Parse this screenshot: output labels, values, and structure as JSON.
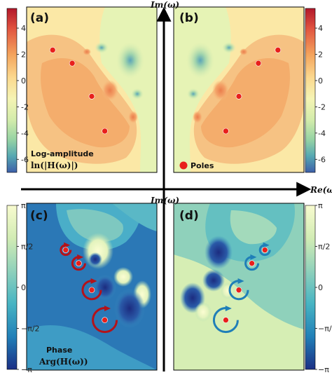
{
  "chart_data": [
    {
      "type": "heatmap",
      "panel": "(a)",
      "quantity": "log-amplitude",
      "annotation": [
        "Log-amplitude",
        "ln(|H(ω)|)"
      ],
      "poles": [
        {
          "re": -1.2,
          "im": 2.4
        },
        {
          "re": -0.9,
          "im": 1.6
        },
        {
          "re": -0.6,
          "im": -0.4
        },
        {
          "re": -0.4,
          "im": -2.5
        }
      ],
      "colorbar": {
        "ticks": [
          4,
          2,
          0,
          -2,
          -4,
          -6
        ],
        "range": [
          -7,
          5.5
        ],
        "colormap": "Spectral",
        "side": "left"
      }
    },
    {
      "type": "heatmap",
      "panel": "(b)",
      "quantity": "log-amplitude",
      "legend": "Poles",
      "poles": [
        {
          "re": 1.2,
          "im": 2.4
        },
        {
          "re": 0.9,
          "im": 1.6
        },
        {
          "re": 0.6,
          "im": -0.4
        },
        {
          "re": 0.4,
          "im": -2.5
        }
      ],
      "colorbar": {
        "ticks": [
          4,
          2,
          0,
          -2,
          -4,
          -6
        ],
        "range": [
          -7,
          5.5
        ],
        "colormap": "Spectral",
        "side": "right"
      }
    },
    {
      "type": "heatmap",
      "panel": "(c)",
      "quantity": "phase",
      "annotation": [
        "Phase",
        "Arg(H(ω))"
      ],
      "poles": [
        {
          "re": -1.0,
          "im": 2.2
        },
        {
          "re": -0.8,
          "im": 1.4
        },
        {
          "re": -0.6,
          "im": -0.2
        },
        {
          "re": -0.4,
          "im": -2.0
        }
      ],
      "colorbar": {
        "ticks": [
          "π",
          "π/2",
          "0",
          "−π/2",
          "−π"
        ],
        "range": [
          -3.1416,
          3.1416
        ],
        "colormap": "YlGnBu",
        "side": "left"
      }
    },
    {
      "type": "heatmap",
      "panel": "(d)",
      "quantity": "phase",
      "poles": [
        {
          "re": 1.0,
          "im": 2.2
        },
        {
          "re": 0.8,
          "im": 1.4
        },
        {
          "re": 0.6,
          "im": -0.2
        },
        {
          "re": 0.4,
          "im": -2.0
        }
      ],
      "colorbar": {
        "ticks": [
          "π",
          "π/2",
          "0",
          "−π/2",
          "−π"
        ],
        "range": [
          -3.1416,
          3.1416
        ],
        "colormap": "YlGnBu",
        "side": "right"
      }
    }
  ],
  "axes": {
    "im_label": "Im(ω)",
    "re_label": "Re(ω)"
  },
  "colors": {
    "pole": "#e8201c",
    "arrow_c": "#b3121a",
    "arrow_d": "#1f7fb8"
  }
}
